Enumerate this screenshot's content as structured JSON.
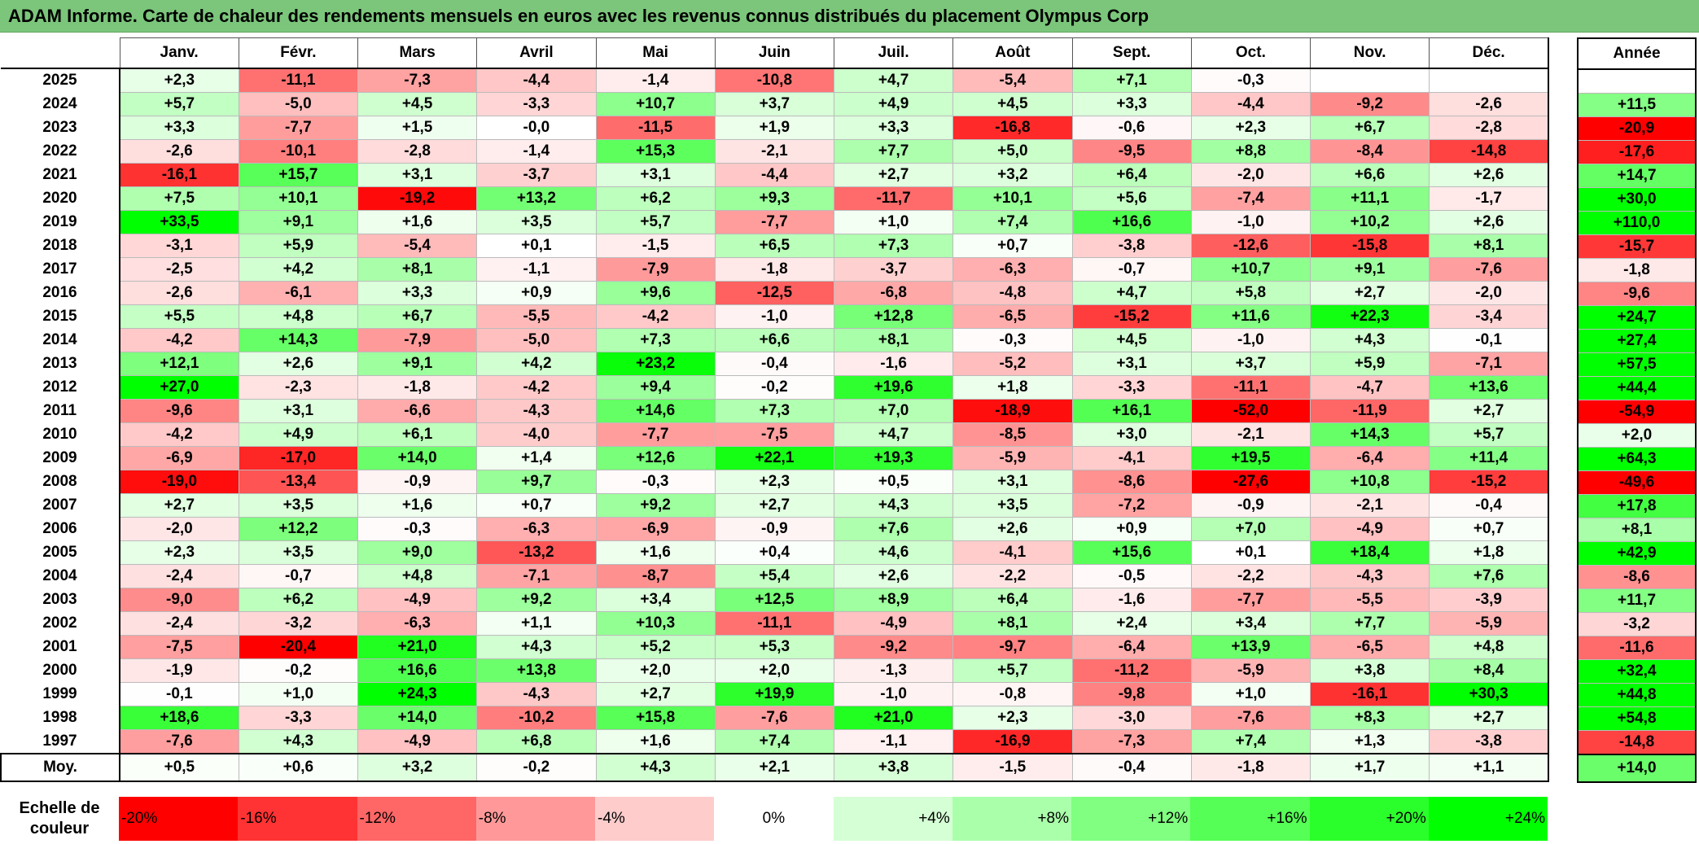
{
  "title": "ADAM Informe. Carte de chaleur des rendements mensuels en euros avec les revenus connus distribués du placement Olympus Corp",
  "chart_data": {
    "type": "heatmap",
    "title": "ADAM Informe. Carte de chaleur des rendements mensuels en euros avec les revenus connus distribués du placement Olympus Corp",
    "months": [
      "Janv.",
      "Févr.",
      "Mars",
      "Avril",
      "Mai",
      "Juin",
      "Juil.",
      "Août",
      "Sept.",
      "Oct.",
      "Nov.",
      "Déc."
    ],
    "annual_header": "Année",
    "rows": [
      {
        "year": "2025",
        "values": [
          2.3,
          -11.1,
          -7.3,
          -4.4,
          -1.4,
          -10.8,
          4.7,
          -5.4,
          7.1,
          -0.3,
          null,
          null
        ],
        "annual": null
      },
      {
        "year": "2024",
        "values": [
          5.7,
          -5.0,
          4.5,
          -3.3,
          10.7,
          3.7,
          4.9,
          4.5,
          3.3,
          -4.4,
          -9.2,
          -2.6
        ],
        "annual": 11.5
      },
      {
        "year": "2023",
        "values": [
          3.3,
          -7.7,
          1.5,
          -0.0,
          -11.5,
          1.9,
          3.3,
          -16.8,
          -0.6,
          2.3,
          6.7,
          -2.8
        ],
        "annual": -20.9
      },
      {
        "year": "2022",
        "values": [
          -2.6,
          -10.1,
          -2.8,
          -1.4,
          15.3,
          -2.1,
          7.7,
          5.0,
          -9.5,
          8.8,
          -8.4,
          -14.8
        ],
        "annual": -17.6
      },
      {
        "year": "2021",
        "values": [
          -16.1,
          15.7,
          3.1,
          -3.7,
          3.1,
          -4.4,
          2.7,
          3.2,
          6.4,
          -2.0,
          6.6,
          2.6
        ],
        "annual": 14.7
      },
      {
        "year": "2020",
        "values": [
          7.5,
          10.1,
          -19.2,
          13.2,
          6.2,
          9.3,
          -11.7,
          10.1,
          5.6,
          -7.4,
          11.1,
          -1.7
        ],
        "annual": 30.0
      },
      {
        "year": "2019",
        "values": [
          33.5,
          9.1,
          1.6,
          3.5,
          5.7,
          -7.7,
          1.0,
          7.4,
          16.6,
          -1.0,
          10.2,
          2.6
        ],
        "annual": 110.0
      },
      {
        "year": "2018",
        "values": [
          -3.1,
          5.9,
          -5.4,
          0.1,
          -1.5,
          6.5,
          7.3,
          0.7,
          -3.8,
          -12.6,
          -15.8,
          8.1
        ],
        "annual": -15.7
      },
      {
        "year": "2017",
        "values": [
          -2.5,
          4.2,
          8.1,
          -1.1,
          -7.9,
          -1.8,
          -3.7,
          -6.3,
          -0.7,
          10.7,
          9.1,
          -7.6
        ],
        "annual": -1.8
      },
      {
        "year": "2016",
        "values": [
          -2.6,
          -6.1,
          3.3,
          0.9,
          9.6,
          -12.5,
          -6.8,
          -4.8,
          4.7,
          5.8,
          2.7,
          -2.0
        ],
        "annual": -9.6
      },
      {
        "year": "2015",
        "values": [
          5.5,
          4.8,
          6.7,
          -5.5,
          -4.2,
          -1.0,
          12.8,
          -6.5,
          -15.2,
          11.6,
          22.3,
          -3.4
        ],
        "annual": 24.7
      },
      {
        "year": "2014",
        "values": [
          -4.2,
          14.3,
          -7.9,
          -5.0,
          7.3,
          6.6,
          8.1,
          -0.3,
          4.5,
          -1.0,
          4.3,
          -0.1
        ],
        "annual": 27.4
      },
      {
        "year": "2013",
        "values": [
          12.1,
          2.6,
          9.1,
          4.2,
          23.2,
          -0.4,
          -1.6,
          -5.2,
          3.1,
          3.7,
          5.9,
          -7.1
        ],
        "annual": 57.5
      },
      {
        "year": "2012",
        "values": [
          27.0,
          -2.3,
          -1.8,
          -4.2,
          9.4,
          -0.2,
          19.6,
          1.8,
          -3.3,
          -11.1,
          -4.7,
          13.6
        ],
        "annual": 44.4
      },
      {
        "year": "2011",
        "values": [
          -9.6,
          3.1,
          -6.6,
          -4.3,
          14.6,
          7.3,
          7.0,
          -18.9,
          16.1,
          -52.0,
          -11.9,
          2.7
        ],
        "annual": -54.9
      },
      {
        "year": "2010",
        "values": [
          -4.2,
          4.9,
          6.1,
          -4.0,
          -7.7,
          -7.5,
          4.7,
          -8.5,
          3.0,
          -2.1,
          14.3,
          5.7
        ],
        "annual": 2.0
      },
      {
        "year": "2009",
        "values": [
          -6.9,
          -17.0,
          14.0,
          1.4,
          12.6,
          22.1,
          19.3,
          -5.9,
          -4.1,
          19.5,
          -6.4,
          11.4
        ],
        "annual": 64.3
      },
      {
        "year": "2008",
        "values": [
          -19.0,
          -13.4,
          -0.9,
          9.7,
          -0.3,
          2.3,
          0.5,
          3.1,
          -8.6,
          -27.6,
          10.8,
          -15.2
        ],
        "annual": -49.6
      },
      {
        "year": "2007",
        "values": [
          2.7,
          3.5,
          1.6,
          0.7,
          9.2,
          2.7,
          4.3,
          3.5,
          -7.2,
          -0.9,
          -2.1,
          -0.4
        ],
        "annual": 17.8
      },
      {
        "year": "2006",
        "values": [
          -2.0,
          12.2,
          -0.3,
          -6.3,
          -6.9,
          -0.9,
          7.6,
          2.6,
          0.9,
          7.0,
          -4.9,
          0.7
        ],
        "annual": 8.1
      },
      {
        "year": "2005",
        "values": [
          2.3,
          3.5,
          9.0,
          -13.2,
          1.6,
          0.4,
          4.6,
          -4.1,
          15.6,
          0.1,
          18.4,
          1.8
        ],
        "annual": 42.9
      },
      {
        "year": "2004",
        "values": [
          -2.4,
          -0.7,
          4.8,
          -7.1,
          -8.7,
          5.4,
          2.6,
          -2.2,
          -0.5,
          -2.2,
          -4.3,
          7.6
        ],
        "annual": -8.6
      },
      {
        "year": "2003",
        "values": [
          -9.0,
          6.2,
          -4.9,
          9.2,
          3.4,
          12.5,
          8.9,
          6.4,
          -1.6,
          -7.7,
          -5.5,
          -3.9
        ],
        "annual": 11.7
      },
      {
        "year": "2002",
        "values": [
          -2.4,
          -3.2,
          -6.3,
          1.1,
          10.3,
          -11.1,
          -4.9,
          8.1,
          2.4,
          3.4,
          7.7,
          -5.9
        ],
        "annual": -3.2
      },
      {
        "year": "2001",
        "values": [
          -7.5,
          -20.4,
          21.0,
          4.3,
          5.2,
          5.3,
          -9.2,
          -9.7,
          -6.4,
          13.9,
          -6.5,
          4.8
        ],
        "annual": -11.6
      },
      {
        "year": "2000",
        "values": [
          -1.9,
          -0.2,
          16.6,
          13.8,
          2.0,
          2.0,
          -1.3,
          5.7,
          -11.2,
          -5.9,
          3.8,
          8.4
        ],
        "annual": 32.4
      },
      {
        "year": "1999",
        "values": [
          -0.1,
          1.0,
          24.3,
          -4.3,
          2.7,
          19.9,
          -1.0,
          -0.8,
          -9.8,
          1.0,
          -16.1,
          30.3
        ],
        "annual": 44.8
      },
      {
        "year": "1998",
        "values": [
          18.6,
          -3.3,
          14.0,
          -10.2,
          15.8,
          -7.6,
          21.0,
          2.3,
          -3.0,
          -7.6,
          8.3,
          2.7
        ],
        "annual": 54.8
      },
      {
        "year": "1997",
        "values": [
          -7.6,
          4.3,
          -4.9,
          6.8,
          1.6,
          7.4,
          -1.1,
          -16.9,
          -7.3,
          7.4,
          1.3,
          -3.8
        ],
        "annual": -14.8
      }
    ],
    "average": {
      "label": "Moy.",
      "values": [
        0.5,
        0.6,
        3.2,
        -0.2,
        4.3,
        2.1,
        3.8,
        -1.5,
        -0.4,
        -1.8,
        1.7,
        1.1
      ],
      "annual": 14.0
    },
    "scale": {
      "label": "Echelle de couleur",
      "steps": [
        -20,
        -16,
        -12,
        -8,
        -4,
        0,
        4,
        8,
        12,
        16,
        20,
        24
      ],
      "step_labels": [
        "-20%",
        "-16%",
        "-12%",
        "-8%",
        "-4%",
        "0%",
        "+4%",
        "+8%",
        "+12%",
        "+16%",
        "+20%",
        "+24%"
      ]
    },
    "colors": {
      "title_bg": "#7bc67b",
      "negative_max": "#ff0000",
      "neutral": "#ffffff",
      "positive_max": "#00ff00"
    }
  }
}
